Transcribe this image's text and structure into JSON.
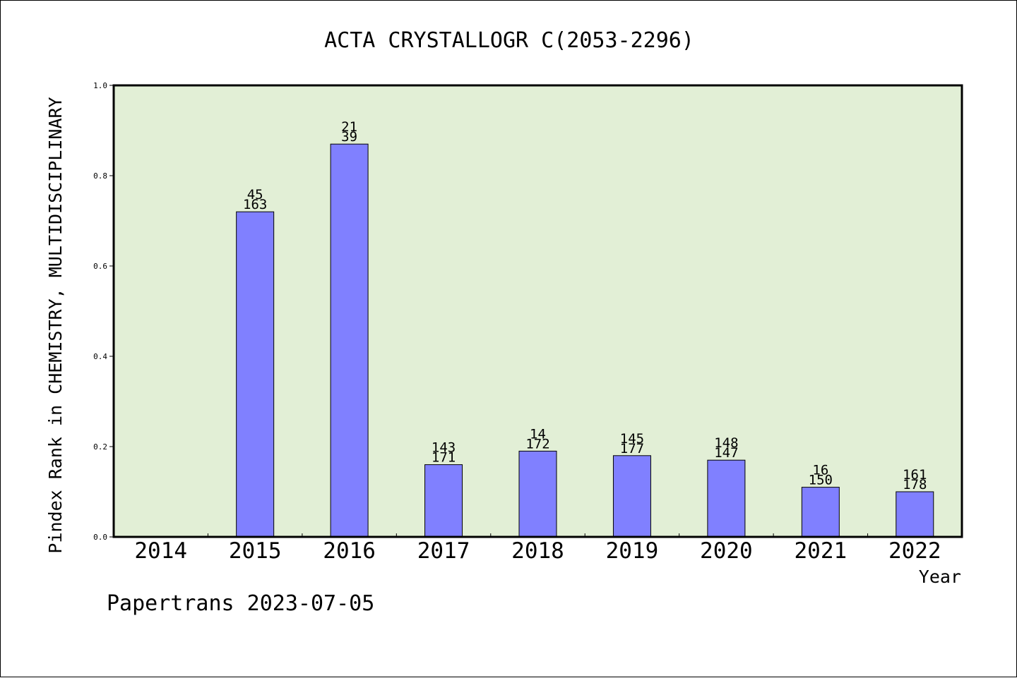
{
  "footer": {
    "text": "Papertrans 2023-07-05"
  },
  "chart_data": {
    "type": "bar",
    "title": "ACTA CRYSTALLOGR C(2053-2296)",
    "xlabel": "Year",
    "ylabel": "Pindex Rank in CHEMISTRY, MULTIDISCIPLINARY",
    "categories": [
      "2014",
      "2015",
      "2016",
      "2017",
      "2018",
      "2019",
      "2020",
      "2021",
      "2022"
    ],
    "values": [
      null,
      0.72,
      0.87,
      0.16,
      0.19,
      0.18,
      0.17,
      0.11,
      0.1
    ],
    "label_top": [
      "",
      "45",
      "21",
      "143",
      "14",
      "145",
      "148",
      "16",
      "161"
    ],
    "label_bottom": [
      "",
      "163",
      "39",
      "171",
      "172",
      "177",
      "147",
      "150",
      "178"
    ],
    "ylim": [
      0,
      1.0
    ],
    "yticks": [
      "0.0",
      "0.2",
      "0.4",
      "0.6",
      "0.8",
      "1.0"
    ],
    "plot_background": "#e2efd6",
    "bar_color": "#8080ff",
    "grid": false
  }
}
